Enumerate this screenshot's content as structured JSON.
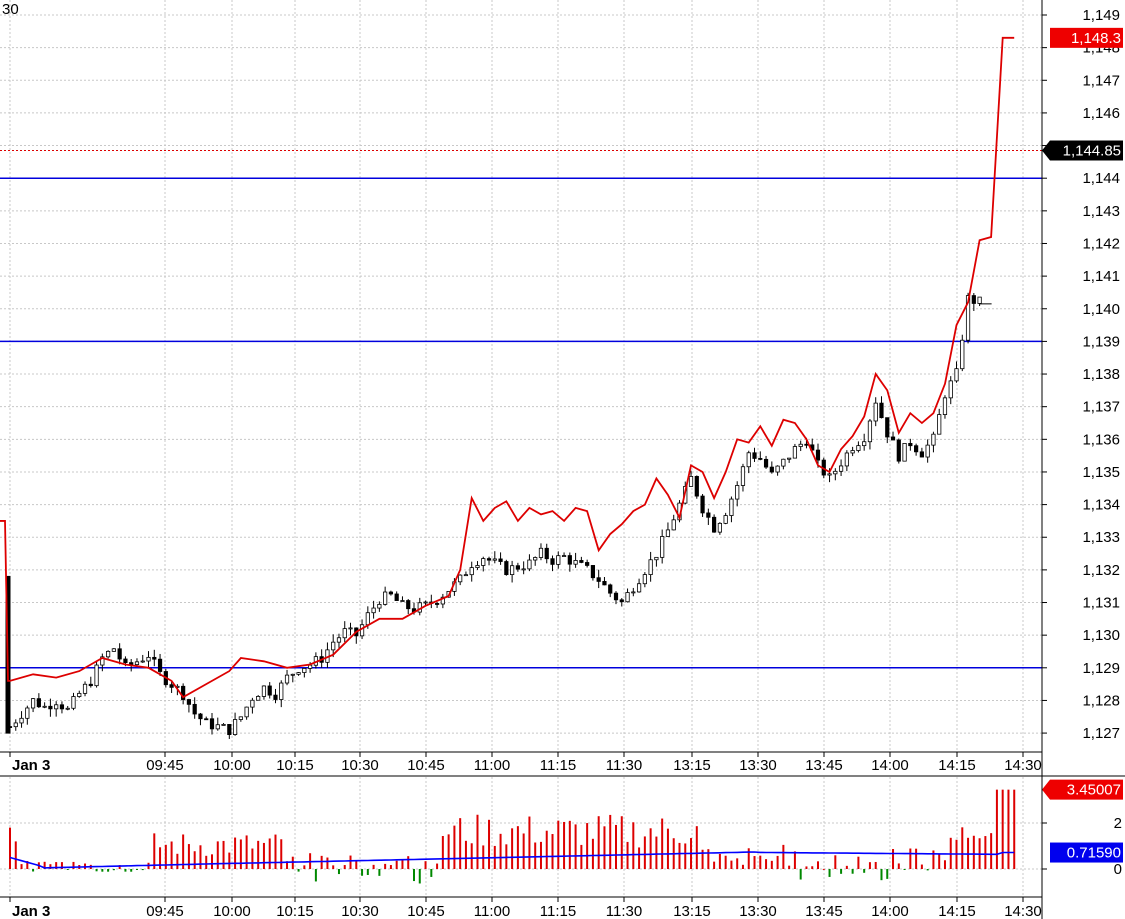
{
  "header": {
    "interval_label": "30"
  },
  "colors": {
    "grid": "#c8c8c8",
    "level_line": "#0000dd",
    "compare_line": "#dd0000",
    "candle_up": "#ffffff",
    "candle_down": "#000000",
    "volume_up": "#dd0000",
    "volume_down": "#008800",
    "volume_avg": "#0000ff",
    "tag_red": "#ee0000",
    "tag_black": "#000000",
    "tag_blue": "#0000ee"
  },
  "chart_data": [
    {
      "type": "candlestick",
      "title": "",
      "ylim": [
        1126.5,
        1149.3
      ],
      "y_ticks": [
        "1,127",
        "1,128",
        "1,129",
        "1,130",
        "1,131",
        "1,132",
        "1,133",
        "1,134",
        "1,135",
        "1,136",
        "1,137",
        "1,138",
        "1,139",
        "1,140",
        "1,141",
        "1,142",
        "1,143",
        "1,144",
        "1,145",
        "1,146",
        "1,147",
        "1,148",
        "1,149"
      ],
      "y_tick_values": [
        1127,
        1128,
        1129,
        1130,
        1131,
        1132,
        1133,
        1134,
        1135,
        1136,
        1137,
        1138,
        1139,
        1140,
        1141,
        1142,
        1143,
        1144,
        1145,
        1146,
        1147,
        1148,
        1149
      ],
      "x_labels": [
        "Jan 3",
        "09:45",
        "10:00",
        "10:15",
        "10:30",
        "10:45",
        "11:00",
        "11:15",
        "11:30",
        "13:15",
        "13:30",
        "13:45",
        "14:00",
        "14:15",
        "14:30"
      ],
      "horizontal_levels": [
        1129.0,
        1139.0,
        1144.0
      ],
      "last_price_reference": {
        "value": 1144.85,
        "label": "1,144.85"
      },
      "compare_series_last": {
        "value": 1148.3,
        "label": "1,148.3"
      },
      "price_path": [
        [
          0,
          1127.2
        ],
        [
          2,
          1127.6
        ],
        [
          4,
          1128.0
        ],
        [
          6,
          1127.8
        ],
        [
          8,
          1128.0
        ],
        [
          10,
          1127.7
        ],
        [
          12,
          1128.2
        ],
        [
          14,
          1128.6
        ],
        [
          16,
          1129.3
        ],
        [
          18,
          1129.6
        ],
        [
          20,
          1129.0
        ],
        [
          22,
          1129.2
        ],
        [
          24,
          1129.4
        ],
        [
          26,
          1128.8
        ],
        [
          28,
          1128.5
        ],
        [
          30,
          1128.2
        ],
        [
          32,
          1127.6
        ],
        [
          34,
          1127.3
        ],
        [
          36,
          1127.2
        ],
        [
          38,
          1127.1
        ],
        [
          40,
          1127.5
        ],
        [
          42,
          1128.1
        ],
        [
          44,
          1128.4
        ],
        [
          46,
          1128.2
        ],
        [
          48,
          1128.7
        ],
        [
          50,
          1129.0
        ],
        [
          52,
          1129.1
        ],
        [
          54,
          1129.3
        ],
        [
          56,
          1129.8
        ],
        [
          58,
          1130.1
        ],
        [
          60,
          1130.0
        ],
        [
          62,
          1130.6
        ],
        [
          64,
          1131.1
        ],
        [
          66,
          1131.2
        ],
        [
          68,
          1130.9
        ],
        [
          70,
          1130.8
        ],
        [
          72,
          1130.9
        ],
        [
          74,
          1131.1
        ],
        [
          76,
          1131.4
        ],
        [
          78,
          1131.7
        ],
        [
          80,
          1132.2
        ],
        [
          82,
          1132.4
        ],
        [
          84,
          1132.2
        ],
        [
          86,
          1132.0
        ],
        [
          88,
          1132.1
        ],
        [
          90,
          1132.2
        ],
        [
          92,
          1132.5
        ],
        [
          94,
          1132.3
        ],
        [
          96,
          1132.4
        ],
        [
          98,
          1132.2
        ],
        [
          100,
          1132.0
        ],
        [
          102,
          1131.7
        ],
        [
          104,
          1131.3
        ],
        [
          106,
          1131.0
        ],
        [
          108,
          1131.5
        ],
        [
          110,
          1132.0
        ],
        [
          112,
          1132.5
        ],
        [
          114,
          1133.2
        ],
        [
          116,
          1134.0
        ],
        [
          118,
          1134.8
        ],
        [
          120,
          1133.9
        ],
        [
          122,
          1133.3
        ],
        [
          124,
          1133.8
        ],
        [
          126,
          1134.6
        ],
        [
          128,
          1135.6
        ],
        [
          130,
          1135.4
        ],
        [
          132,
          1134.9
        ],
        [
          134,
          1135.3
        ],
        [
          136,
          1135.7
        ],
        [
          138,
          1136.0
        ],
        [
          140,
          1135.2
        ],
        [
          142,
          1134.8
        ],
        [
          144,
          1135.3
        ],
        [
          146,
          1135.8
        ],
        [
          148,
          1136.1
        ],
        [
          150,
          1137.2
        ],
        [
          152,
          1136.2
        ],
        [
          154,
          1135.5
        ],
        [
          156,
          1135.9
        ],
        [
          158,
          1135.6
        ],
        [
          160,
          1136.0
        ],
        [
          162,
          1137.4
        ],
        [
          164,
          1138.0
        ],
        [
          166,
          1140.3
        ],
        [
          168,
          1140.2
        ]
      ],
      "compare_path": [
        [
          0,
          1128.6
        ],
        [
          4,
          1128.8
        ],
        [
          8,
          1128.7
        ],
        [
          12,
          1128.9
        ],
        [
          16,
          1129.3
        ],
        [
          20,
          1129.1
        ],
        [
          24,
          1129.0
        ],
        [
          28,
          1128.6
        ],
        [
          30,
          1128.1
        ],
        [
          34,
          1128.5
        ],
        [
          38,
          1128.9
        ],
        [
          40,
          1129.3
        ],
        [
          44,
          1129.2
        ],
        [
          48,
          1129.0
        ],
        [
          52,
          1129.1
        ],
        [
          56,
          1129.4
        ],
        [
          60,
          1130.1
        ],
        [
          64,
          1130.5
        ],
        [
          68,
          1130.5
        ],
        [
          72,
          1130.9
        ],
        [
          76,
          1131.2
        ],
        [
          78,
          1132.0
        ],
        [
          80,
          1134.2
        ],
        [
          82,
          1133.5
        ],
        [
          84,
          1133.9
        ],
        [
          86,
          1134.1
        ],
        [
          88,
          1133.5
        ],
        [
          90,
          1133.9
        ],
        [
          92,
          1133.7
        ],
        [
          94,
          1133.8
        ],
        [
          96,
          1133.5
        ],
        [
          98,
          1133.9
        ],
        [
          100,
          1133.8
        ],
        [
          102,
          1132.6
        ],
        [
          104,
          1133.1
        ],
        [
          106,
          1133.4
        ],
        [
          108,
          1133.8
        ],
        [
          110,
          1134.0
        ],
        [
          112,
          1134.8
        ],
        [
          114,
          1134.3
        ],
        [
          116,
          1133.6
        ],
        [
          118,
          1135.2
        ],
        [
          120,
          1135.0
        ],
        [
          122,
          1134.2
        ],
        [
          124,
          1135.0
        ],
        [
          126,
          1136.0
        ],
        [
          128,
          1135.9
        ],
        [
          130,
          1136.4
        ],
        [
          132,
          1135.8
        ],
        [
          134,
          1136.6
        ],
        [
          136,
          1136.5
        ],
        [
          138,
          1136.0
        ],
        [
          140,
          1135.2
        ],
        [
          142,
          1135.0
        ],
        [
          144,
          1135.7
        ],
        [
          146,
          1136.1
        ],
        [
          148,
          1136.7
        ],
        [
          150,
          1138.0
        ],
        [
          152,
          1137.5
        ],
        [
          154,
          1136.2
        ],
        [
          156,
          1136.8
        ],
        [
          158,
          1136.5
        ],
        [
          160,
          1136.8
        ],
        [
          162,
          1137.7
        ],
        [
          164,
          1139.5
        ],
        [
          166,
          1140.2
        ],
        [
          168,
          1142.1
        ],
        [
          170,
          1142.2
        ],
        [
          172,
          1148.3
        ],
        [
          174,
          1148.3
        ]
      ]
    },
    {
      "type": "bar",
      "title": "",
      "ylim": [
        -0.6,
        3.6
      ],
      "y_ticks": [
        "0",
        "2"
      ],
      "y_tick_values": [
        0,
        2
      ],
      "last_value_red": {
        "value": 3.45007,
        "label": "3.45007"
      },
      "last_value_blue": {
        "value": 0.7159,
        "label": "0.71590"
      },
      "x_labels": [
        "Jan 3",
        "09:45",
        "10:00",
        "10:15",
        "10:30",
        "10:45",
        "11:00",
        "11:15",
        "11:30",
        "13:15",
        "13:30",
        "13:45",
        "14:00",
        "14:15",
        "14:30"
      ]
    }
  ]
}
